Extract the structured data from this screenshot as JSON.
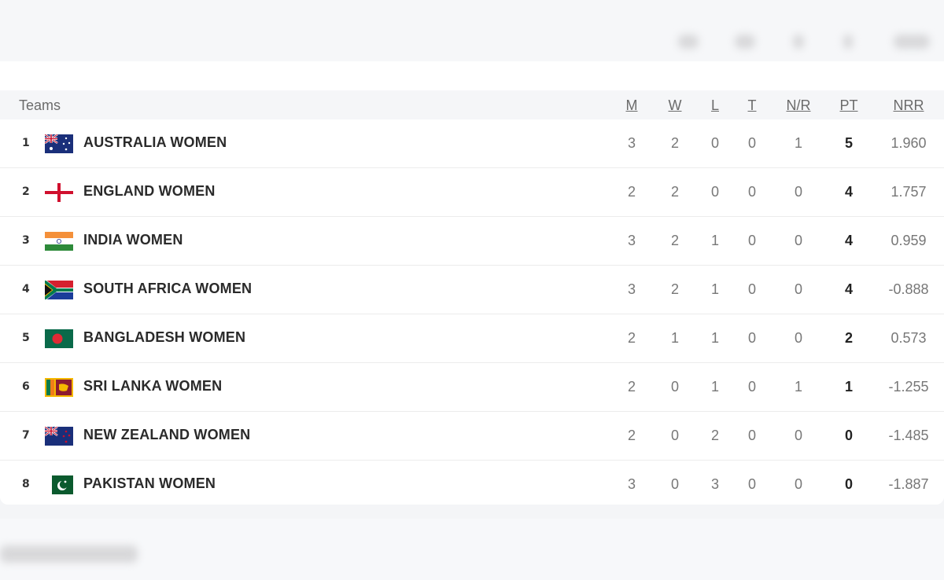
{
  "table": {
    "headers": {
      "teams": "Teams",
      "m": "M",
      "w": "W",
      "l": "L",
      "t": "T",
      "nr": "N/R",
      "pt": "PT",
      "nrr": "NRR"
    },
    "rows": [
      {
        "pos": "1",
        "flag": "australia-flag",
        "team": "AUSTRALIA WOMEN",
        "m": "3",
        "w": "2",
        "l": "0",
        "t": "0",
        "nr": "1",
        "pt": "5",
        "nrr": "1.960"
      },
      {
        "pos": "2",
        "flag": "england-flag",
        "team": "ENGLAND WOMEN",
        "m": "2",
        "w": "2",
        "l": "0",
        "t": "0",
        "nr": "0",
        "pt": "4",
        "nrr": "1.757"
      },
      {
        "pos": "3",
        "flag": "india-flag",
        "team": "INDIA WOMEN",
        "m": "3",
        "w": "2",
        "l": "1",
        "t": "0",
        "nr": "0",
        "pt": "4",
        "nrr": "0.959"
      },
      {
        "pos": "4",
        "flag": "south-africa-flag",
        "team": "SOUTH AFRICA WOMEN",
        "m": "3",
        "w": "2",
        "l": "1",
        "t": "0",
        "nr": "0",
        "pt": "4",
        "nrr": "-0.888"
      },
      {
        "pos": "5",
        "flag": "bangladesh-flag",
        "team": "BANGLADESH WOMEN",
        "m": "2",
        "w": "1",
        "l": "1",
        "t": "0",
        "nr": "0",
        "pt": "2",
        "nrr": "0.573"
      },
      {
        "pos": "6",
        "flag": "sri-lanka-flag",
        "team": "SRI LANKA WOMEN",
        "m": "2",
        "w": "0",
        "l": "1",
        "t": "0",
        "nr": "1",
        "pt": "1",
        "nrr": "-1.255"
      },
      {
        "pos": "7",
        "flag": "new-zealand-flag",
        "team": "NEW ZEALAND WOMEN",
        "m": "2",
        "w": "0",
        "l": "2",
        "t": "0",
        "nr": "0",
        "pt": "0",
        "nrr": "-1.485"
      },
      {
        "pos": "8",
        "flag": "pakistan-flag",
        "team": "PAKISTAN WOMEN",
        "m": "3",
        "w": "0",
        "l": "3",
        "t": "0",
        "nr": "0",
        "pt": "0",
        "nrr": "-1.887"
      }
    ]
  }
}
